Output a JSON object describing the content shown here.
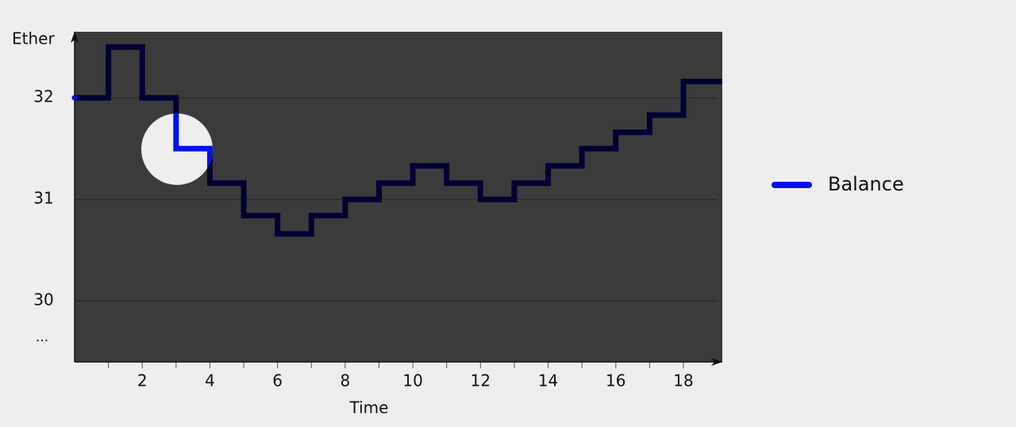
{
  "chart_data": {
    "type": "step",
    "x_label": "Time",
    "y_label": "Ether",
    "y_break_label": "...",
    "x": [
      0,
      1,
      2,
      3,
      4,
      5,
      6,
      7,
      8,
      9,
      10,
      11,
      12,
      13,
      14,
      15,
      16,
      17,
      18
    ],
    "series": [
      {
        "name": "Balance",
        "color": "#0011ee",
        "values": [
          32,
          32.5,
          32,
          31.5,
          31.16,
          30.84,
          30.66,
          30.84,
          31,
          31.16,
          31.33,
          31.16,
          31,
          31.16,
          31.33,
          31.5,
          31.66,
          31.83,
          32.16
        ]
      }
    ],
    "xlim": [
      0,
      19.15
    ],
    "ylim": [
      29.4,
      32.65
    ],
    "xticks": [
      2,
      4,
      6,
      8,
      10,
      12,
      14,
      16,
      18
    ],
    "xminorticks": [
      1,
      3,
      5,
      7,
      9,
      11,
      13,
      15,
      17
    ],
    "yticks": [
      30,
      31,
      32
    ],
    "grid": true,
    "legend": "right"
  }
}
